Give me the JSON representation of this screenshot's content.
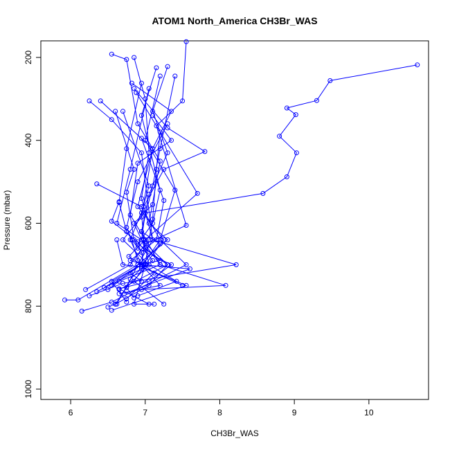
{
  "chart_data": {
    "type": "line",
    "title": "ATOM1 North_America CH3Br_WAS",
    "xlabel": "CH3Br_WAS",
    "ylabel": "Pressure (mbar)",
    "xlim": [
      5.6,
      10.8
    ],
    "ylim": [
      1025,
      160
    ],
    "y_reversed": true,
    "xticks": [
      6,
      7,
      8,
      9,
      10
    ],
    "yticks": [
      200,
      400,
      600,
      800,
      1000
    ],
    "grid": false,
    "marker": "open-circle",
    "color": "#0000ff",
    "series": [
      {
        "points": [
          [
            10.65,
            218
          ],
          [
            9.48,
            256
          ],
          [
            9.3,
            304
          ],
          [
            8.9,
            322
          ],
          [
            9.02,
            338
          ],
          [
            8.8,
            390
          ],
          [
            9.03,
            430
          ],
          [
            8.9,
            488
          ],
          [
            8.58,
            528
          ],
          [
            7.0,
            575
          ],
          [
            6.95,
            640
          ],
          [
            7.3,
            700
          ],
          [
            6.65,
            760
          ]
        ]
      },
      {
        "points": [
          [
            7.55,
            162
          ],
          [
            7.5,
            305
          ],
          [
            7.15,
            365
          ],
          [
            7.55,
            605
          ],
          [
            7.0,
            650
          ],
          [
            6.8,
            700
          ],
          [
            6.2,
            760
          ]
        ]
      },
      {
        "points": [
          [
            6.25,
            305
          ],
          [
            6.55,
            350
          ],
          [
            6.95,
            430
          ],
          [
            7.1,
            640
          ],
          [
            6.9,
            700
          ],
          [
            6.75,
            755
          ],
          [
            6.6,
            795
          ]
        ]
      },
      {
        "points": [
          [
            6.35,
            505
          ],
          [
            6.95,
            560
          ],
          [
            7.2,
            640
          ],
          [
            7.55,
            700
          ],
          [
            6.55,
            790
          ],
          [
            6.15,
            812
          ]
        ]
      },
      {
        "points": [
          [
            6.55,
            192
          ],
          [
            6.75,
            205
          ],
          [
            6.9,
            360
          ],
          [
            7.2,
            450
          ],
          [
            7.05,
            600
          ],
          [
            7.3,
            640
          ],
          [
            6.9,
            700
          ],
          [
            6.1,
            785
          ],
          [
            5.92,
            785
          ]
        ]
      },
      {
        "points": [
          [
            6.85,
            200
          ],
          [
            7.0,
            300
          ],
          [
            7.05,
            430
          ],
          [
            6.95,
            540
          ],
          [
            7.1,
            640
          ],
          [
            8.22,
            700
          ],
          [
            6.7,
            745
          ],
          [
            6.25,
            775
          ]
        ]
      },
      {
        "points": [
          [
            6.4,
            305
          ],
          [
            7.1,
            420
          ],
          [
            6.9,
            560
          ],
          [
            7.25,
            640
          ],
          [
            7.0,
            700
          ],
          [
            6.85,
            795
          ],
          [
            7.12,
            795
          ]
        ]
      },
      {
        "points": [
          [
            7.15,
            225
          ],
          [
            6.95,
            340
          ],
          [
            7.2,
            520
          ],
          [
            7.1,
            600
          ],
          [
            6.9,
            650
          ],
          [
            7.3,
            700
          ],
          [
            7.05,
            750
          ],
          [
            6.6,
            795
          ],
          [
            6.5,
            802
          ]
        ]
      },
      {
        "points": [
          [
            7.3,
            222
          ],
          [
            7.1,
            330
          ],
          [
            7.3,
            430
          ],
          [
            7.05,
            530
          ],
          [
            6.95,
            620
          ],
          [
            7.2,
            700
          ],
          [
            8.08,
            750
          ],
          [
            6.95,
            760
          ]
        ]
      },
      {
        "points": [
          [
            7.2,
            245
          ],
          [
            7.0,
            400
          ],
          [
            7.4,
            520
          ],
          [
            7.2,
            640
          ],
          [
            6.95,
            705
          ],
          [
            7.55,
            750
          ],
          [
            6.55,
            810
          ]
        ]
      },
      {
        "points": [
          [
            6.82,
            262
          ],
          [
            7.35,
            330
          ],
          [
            7.1,
            420
          ],
          [
            6.95,
            585
          ],
          [
            6.7,
            640
          ],
          [
            7.05,
            700
          ],
          [
            7.42,
            740
          ],
          [
            6.9,
            775
          ]
        ]
      },
      {
        "points": [
          [
            6.85,
            275
          ],
          [
            7.3,
            370
          ],
          [
            7.8,
            427
          ],
          [
            7.25,
            470
          ],
          [
            6.98,
            560
          ],
          [
            6.8,
            640
          ],
          [
            6.95,
            700
          ],
          [
            7.6,
            710
          ],
          [
            6.72,
            770
          ]
        ]
      },
      {
        "points": [
          [
            6.88,
            285
          ],
          [
            7.7,
            528
          ],
          [
            7.0,
            640
          ],
          [
            6.78,
            680
          ],
          [
            6.95,
            700
          ],
          [
            7.2,
            750
          ],
          [
            6.65,
            770
          ]
        ]
      },
      {
        "points": [
          [
            6.95,
            262
          ],
          [
            6.75,
            420
          ],
          [
            6.65,
            548
          ],
          [
            6.55,
            595
          ],
          [
            6.9,
            645
          ],
          [
            7.1,
            690
          ],
          [
            6.95,
            710
          ],
          [
            6.35,
            765
          ]
        ]
      },
      {
        "points": [
          [
            7.05,
            275
          ],
          [
            6.8,
            470
          ],
          [
            6.62,
            600
          ],
          [
            6.95,
            640
          ],
          [
            7.2,
            700
          ],
          [
            6.65,
            740
          ],
          [
            6.5,
            760
          ]
        ]
      },
      {
        "points": [
          [
            6.6,
            330
          ],
          [
            6.85,
            470
          ],
          [
            6.75,
            525
          ],
          [
            6.85,
            640
          ],
          [
            6.95,
            670
          ],
          [
            6.98,
            700
          ],
          [
            7.12,
            720
          ],
          [
            6.75,
            782
          ]
        ]
      },
      {
        "points": [
          [
            6.7,
            330
          ],
          [
            7.05,
            510
          ],
          [
            6.95,
            575
          ],
          [
            6.98,
            640
          ],
          [
            7.05,
            700
          ],
          [
            6.75,
            755
          ],
          [
            6.85,
            780
          ]
        ]
      },
      {
        "points": [
          [
            7.1,
            340
          ],
          [
            7.35,
            400
          ],
          [
            6.9,
            455
          ],
          [
            6.8,
            580
          ],
          [
            7.0,
            640
          ],
          [
            6.95,
            700
          ],
          [
            6.55,
            750
          ]
        ]
      },
      {
        "points": [
          [
            6.95,
            395
          ],
          [
            7.25,
            545
          ],
          [
            7.15,
            640
          ],
          [
            6.8,
            690
          ],
          [
            7.0,
            700
          ],
          [
            6.85,
            740
          ],
          [
            7.25,
            795
          ]
        ]
      },
      {
        "points": [
          [
            7.2,
            380
          ],
          [
            7.15,
            470
          ],
          [
            7.1,
            590
          ],
          [
            7.05,
            640
          ],
          [
            7.0,
            700
          ],
          [
            6.8,
            735
          ],
          [
            6.62,
            795
          ]
        ]
      },
      {
        "points": [
          [
            7.3,
            360
          ],
          [
            6.9,
            500
          ],
          [
            6.75,
            610
          ],
          [
            6.82,
            640
          ],
          [
            6.9,
            690
          ],
          [
            6.95,
            700
          ],
          [
            6.45,
            755
          ]
        ]
      },
      {
        "points": [
          [
            7.4,
            245
          ],
          [
            7.2,
            420
          ],
          [
            7.1,
            510
          ],
          [
            6.95,
            620
          ],
          [
            7.2,
            650
          ],
          [
            6.95,
            700
          ],
          [
            6.55,
            740
          ],
          [
            6.75,
            790
          ]
        ]
      },
      {
        "points": [
          [
            6.65,
            550
          ],
          [
            6.75,
            620
          ],
          [
            6.9,
            660
          ],
          [
            7.35,
            700
          ],
          [
            7.05,
            740
          ],
          [
            6.65,
            758
          ],
          [
            7.05,
            795
          ]
        ]
      },
      {
        "points": [
          [
            6.62,
            640
          ],
          [
            6.7,
            700
          ],
          [
            6.95,
            705
          ],
          [
            7.5,
            750
          ]
        ]
      },
      {
        "points": [
          [
            7.1,
            555
          ],
          [
            6.85,
            600
          ],
          [
            7.0,
            660
          ],
          [
            7.2,
            690
          ],
          [
            6.9,
            700
          ],
          [
            6.8,
            720
          ],
          [
            6.95,
            740
          ]
        ]
      }
    ]
  }
}
